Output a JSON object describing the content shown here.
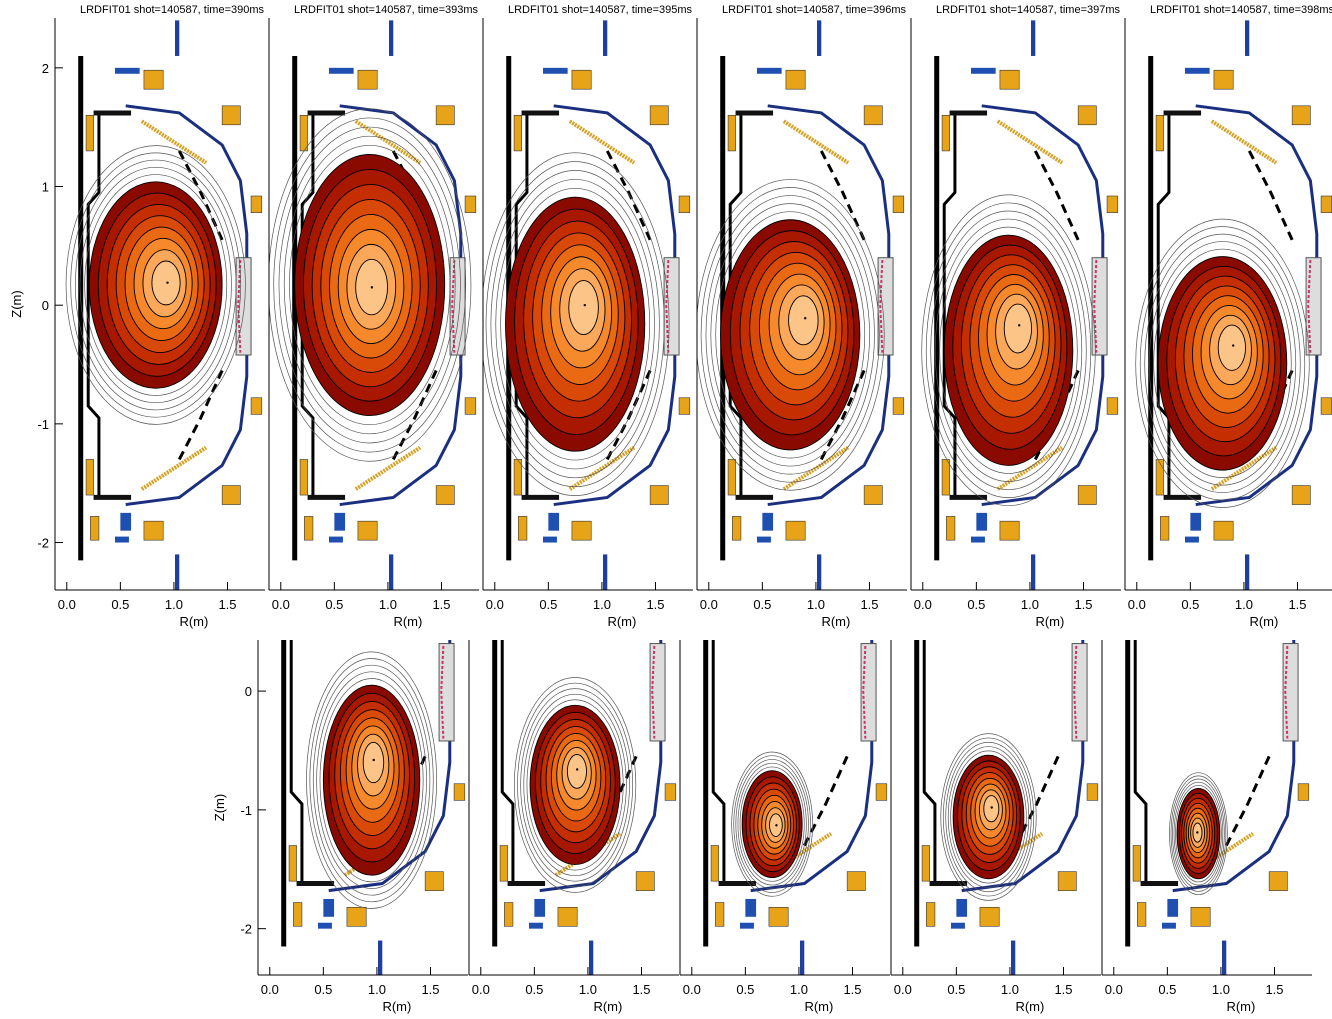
{
  "contour_colors": [
    "#8b0a00",
    "#a81800",
    "#c42e00",
    "#d94a08",
    "#ea6a14",
    "#f5892c",
    "#fba85a",
    "#fdc488"
  ],
  "chart_data": [
    {
      "type": "contour",
      "title": "LRDFIT01 shot=140587, time=390ms",
      "xlabel": "R(m)",
      "ylabel": "Z(m)",
      "xlim": [
        -0.11,
        1.85
      ],
      "ylim": [
        -2.4,
        2.42
      ],
      "xticks": [
        {
          "value": 0,
          "label": "0.0"
        },
        0.5,
        {
          "value": 1,
          "label": "1.0"
        },
        1.5
      ],
      "yticks": [
        -2,
        -1,
        0,
        1,
        2
      ],
      "boundary": {
        "r": 0.83,
        "z": 0.17,
        "a": 0.62,
        "b": 0.87
      },
      "magnetic_axis": {
        "r": 0.94,
        "z": 0.19
      }
    },
    {
      "type": "contour",
      "title": "LRDFIT01 shot=140587, time=393ms",
      "xlabel": "R(m)",
      "xlim": [
        -0.11,
        1.85
      ],
      "ylim": [
        -2.4,
        2.42
      ],
      "xticks": [
        {
          "value": 0,
          "label": "0.0"
        },
        0.5,
        {
          "value": 1,
          "label": "1.0"
        },
        1.5
      ],
      "boundary": {
        "r": 0.83,
        "z": 0.17,
        "a": 0.7,
        "b": 1.1
      },
      "magnetic_axis": {
        "r": 0.85,
        "z": 0.15
      }
    },
    {
      "type": "contour",
      "title": "LRDFIT01 shot=140587, time=395ms",
      "xlabel": "R(m)",
      "xlim": [
        -0.11,
        1.85
      ],
      "ylim": [
        -2.4,
        2.42
      ],
      "xticks": [
        {
          "value": 0,
          "label": "0.0"
        },
        0.5,
        {
          "value": 1,
          "label": "1.0"
        },
        1.5
      ],
      "boundary": {
        "r": 0.75,
        "z": -0.16,
        "a": 0.65,
        "b": 1.07
      },
      "magnetic_axis": {
        "r": 0.84,
        "z": 0
      }
    },
    {
      "type": "contour",
      "title": "LRDFIT01 shot=140587, time=396ms",
      "xlabel": "R(m)",
      "xlim": [
        -0.11,
        1.85
      ],
      "ylim": [
        -2.4,
        2.42
      ],
      "xticks": [
        {
          "value": 0,
          "label": "0.0"
        },
        0.5,
        {
          "value": 1,
          "label": "1.0"
        },
        1.5
      ],
      "boundary": {
        "r": 0.76,
        "z": -0.25,
        "a": 0.65,
        "b": 0.97
      },
      "magnetic_axis": {
        "r": 0.9,
        "z": -0.11
      }
    },
    {
      "type": "contour",
      "title": "LRDFIT01 shot=140587, time=397ms",
      "xlabel": "R(m)",
      "xlim": [
        -0.11,
        1.85
      ],
      "ylim": [
        -2.4,
        2.42
      ],
      "xticks": [
        {
          "value": 0,
          "label": "0.0"
        },
        0.5,
        {
          "value": 1,
          "label": "1.0"
        },
        1.5
      ],
      "boundary": {
        "r": 0.8,
        "z": -0.38,
        "a": 0.6,
        "b": 0.97
      },
      "magnetic_axis": {
        "r": 0.9,
        "z": -0.17
      }
    },
    {
      "type": "contour",
      "title": "LRDFIT01 shot=140587, time=398ms",
      "xlabel": "R(m)",
      "xlim": [
        -0.11,
        1.85
      ],
      "ylim": [
        -2.4,
        2.42
      ],
      "xticks": [
        {
          "value": 0,
          "label": "0.0"
        },
        0.5,
        {
          "value": 1,
          "label": "1.0"
        },
        1.5
      ],
      "boundary": {
        "r": 0.8,
        "z": -0.49,
        "a": 0.6,
        "b": 0.9
      },
      "magnetic_axis": {
        "r": 0.9,
        "z": -0.34
      }
    },
    {
      "type": "contour",
      "xlabel": "R(m)",
      "ylabel": "Z(m)",
      "xlim": [
        -0.11,
        1.85
      ],
      "ylim": [
        -2.39,
        0.43
      ],
      "xticks": [
        {
          "value": 0,
          "label": "0.0"
        },
        0.5,
        {
          "value": 1,
          "label": "1.0"
        },
        1.5
      ],
      "yticks": [
        -2,
        -1,
        0
      ],
      "boundary": {
        "r": 0.95,
        "z": -0.75,
        "a": 0.45,
        "b": 0.8
      },
      "magnetic_axis": {
        "r": 0.97,
        "z": -0.58
      }
    },
    {
      "type": "contour",
      "xlabel": "R(m)",
      "xlim": [
        -0.11,
        1.85
      ],
      "ylim": [
        -2.39,
        0.43
      ],
      "xticks": [
        {
          "value": 0,
          "label": "0.0"
        },
        0.5,
        {
          "value": 1,
          "label": "1.0"
        },
        1.5
      ],
      "boundary": {
        "r": 0.88,
        "z": -0.79,
        "a": 0.42,
        "b": 0.67
      },
      "magnetic_axis": {
        "r": 0.9,
        "z": -0.66
      }
    },
    {
      "type": "contour",
      "xlabel": "R(m)",
      "xlim": [
        -0.11,
        1.85
      ],
      "ylim": [
        -2.39,
        0.43
      ],
      "xticks": [
        {
          "value": 0,
          "label": "0.0"
        },
        0.5,
        {
          "value": 1,
          "label": "1.0"
        },
        1.5
      ],
      "boundary": {
        "r": 0.75,
        "z": -1.12,
        "a": 0.28,
        "b": 0.45
      },
      "magnetic_axis": {
        "r": 0.79,
        "z": -1.13
      }
    },
    {
      "type": "contour",
      "xlabel": "R(m)",
      "xlim": [
        -0.11,
        1.85
      ],
      "ylim": [
        -2.39,
        0.43
      ],
      "xticks": [
        {
          "value": 0,
          "label": "0.0"
        },
        0.5,
        {
          "value": 1,
          "label": "1.0"
        },
        1.5
      ],
      "boundary": {
        "r": 0.8,
        "z": -1.06,
        "a": 0.33,
        "b": 0.52
      },
      "magnetic_axis": {
        "r": 0.83,
        "z": -0.98
      }
    },
    {
      "type": "contour",
      "xlabel": "R(m)",
      "xlim": [
        -0.11,
        1.85
      ],
      "ylim": [
        -2.39,
        0.43
      ],
      "xticks": [
        {
          "value": 0,
          "label": "0.0"
        },
        0.5,
        {
          "value": 1,
          "label": "1.0"
        },
        1.5
      ],
      "boundary": {
        "r": 0.79,
        "z": -1.2,
        "a": 0.2,
        "b": 0.38
      },
      "magnetic_axis": {
        "r": 0.78,
        "z": -1.19
      }
    }
  ]
}
